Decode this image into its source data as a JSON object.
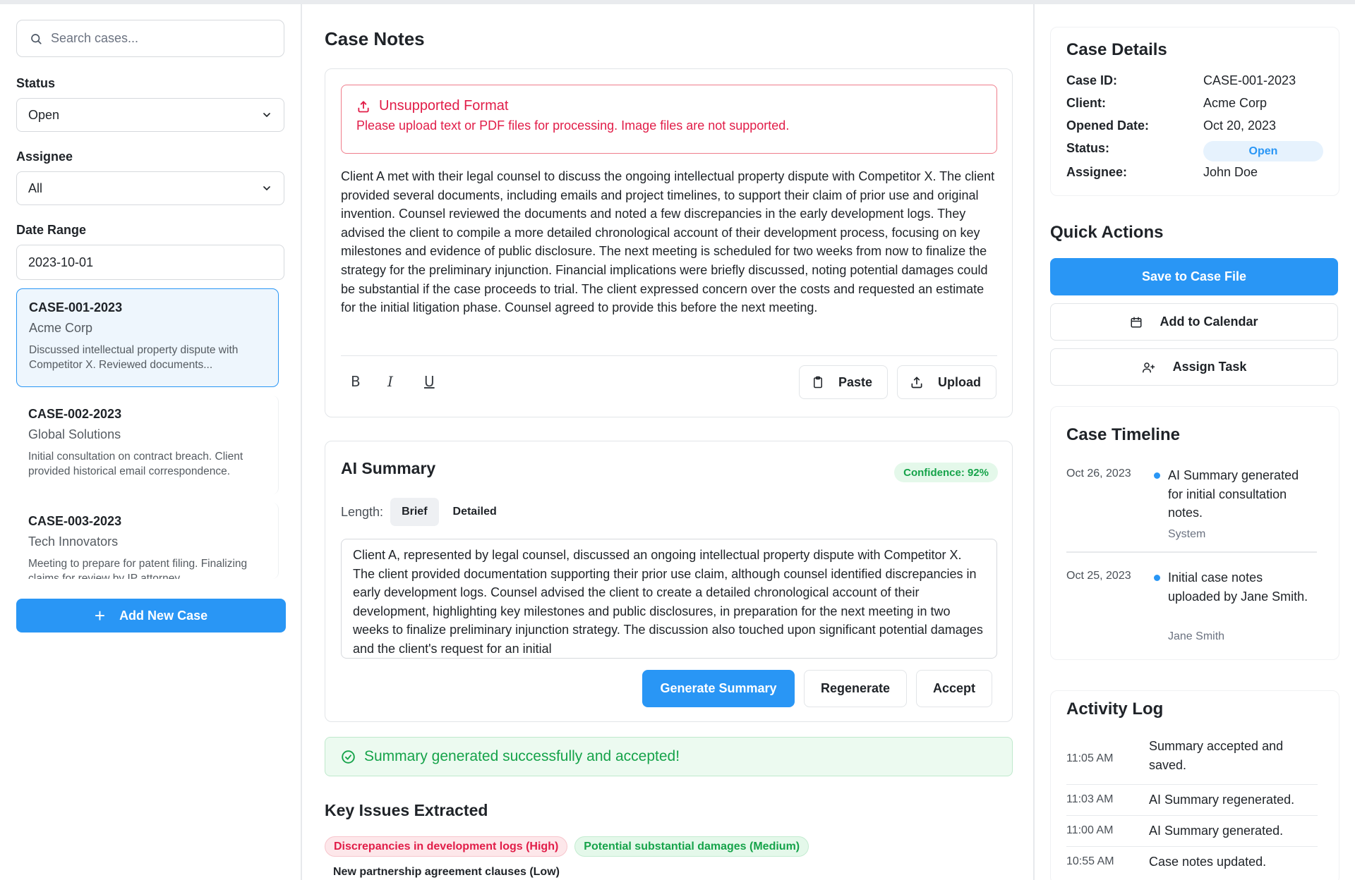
{
  "sidebar": {
    "search_placeholder": "Search cases...",
    "status_label": "Status",
    "status_value": "Open",
    "assignee_label": "Assignee",
    "assignee_value": "All",
    "date_label": "Date Range",
    "date_value": "2023-10-01",
    "cases": [
      {
        "id": "CASE-001-2023",
        "client": "Acme Corp",
        "desc": "Discussed intellectual property dispute with Competitor X. Reviewed documents..."
      },
      {
        "id": "CASE-002-2023",
        "client": "Global Solutions",
        "desc": "Initial consultation on contract breach. Client provided historical email correspondence."
      },
      {
        "id": "CASE-003-2023",
        "client": "Tech Innovators",
        "desc": "Meeting to prepare for patent filing. Finalizing claims for review by IP attorney."
      }
    ],
    "add_case_label": "Add New Case"
  },
  "main": {
    "title": "Case Notes",
    "error": {
      "title": "Unsupported Format",
      "message": "Please upload text or PDF files for processing. Image files are not supported."
    },
    "notes": "Client A met with their legal counsel to discuss the ongoing intellectual property dispute with Competitor X. The client provided several documents, including emails and project timelines, to support their claim of prior use and original invention. Counsel reviewed the documents and noted a few discrepancies in the early development logs. They advised the client to compile a more detailed chronological account of their development process, focusing on key milestones and evidence of public disclosure. The next meeting is scheduled for two weeks from now to finalize the strategy for the preliminary injunction. Financial implications were briefly discussed, noting potential damages could be substantial if the case proceeds to trial. The client expressed concern over the costs and requested an estimate for the initial litigation phase. Counsel agreed to provide this before the next meeting.",
    "toolbar": {
      "bold": "B",
      "italic": "I",
      "underline": "U",
      "paste": "Paste",
      "upload": "Upload"
    },
    "ai": {
      "title": "AI Summary",
      "confidence": "Confidence: 92%",
      "length_label": "Length:",
      "brief": "Brief",
      "detailed": "Detailed",
      "summary": "Client A, represented by legal counsel, discussed an ongoing intellectual property dispute with Competitor X. The client provided documentation supporting their prior use claim, although counsel identified discrepancies in early development logs. Counsel advised the client to create a detailed chronological account of their development, highlighting key milestones and public disclosures, in preparation for the next meeting in two weeks to finalize preliminary injunction strategy. The discussion also touched upon significant potential damages and the client's request for an initial",
      "generate": "Generate Summary",
      "regenerate": "Regenerate",
      "accept": "Accept"
    },
    "success": "Summary generated successfully and accepted!",
    "issues": {
      "title": "Key Issues Extracted",
      "high": "Discrepancies in development logs (High)",
      "medium": "Potential substantial damages (Medium)",
      "low": "New partnership agreement clauses (Low)"
    }
  },
  "right": {
    "details": {
      "title": "Case Details",
      "rows": [
        {
          "k": "Case ID:",
          "v": "CASE-001-2023"
        },
        {
          "k": "Client:",
          "v": "Acme Corp"
        },
        {
          "k": "Opened Date:",
          "v": "Oct 20, 2023"
        },
        {
          "k": "Status:",
          "v": "Open"
        },
        {
          "k": "Assignee:",
          "v": "John Doe"
        }
      ]
    },
    "quick_actions": {
      "title": "Quick Actions",
      "save": "Save to Case File",
      "calendar": "Add to Calendar",
      "assign": "Assign Task"
    },
    "timeline": {
      "title": "Case Timeline",
      "items": [
        {
          "date": "Oct 26, 2023",
          "text": "AI Summary generated for initial consultation notes.",
          "by": "System"
        },
        {
          "date": "Oct 25, 2023",
          "text": "Initial case notes uploaded by Jane Smith.",
          "by": "Jane Smith"
        }
      ]
    },
    "activity": {
      "title": "Activity Log",
      "rows": [
        {
          "time": "11:05 AM",
          "text": "Summary accepted and saved."
        },
        {
          "time": "11:03 AM",
          "text": "AI Summary regenerated."
        },
        {
          "time": "11:00 AM",
          "text": "AI Summary generated."
        },
        {
          "time": "10:55 AM",
          "text": "Case notes updated."
        }
      ]
    }
  },
  "colors": {
    "accent": "#2996f5",
    "error": "#e11d48",
    "success": "#16a34a"
  }
}
